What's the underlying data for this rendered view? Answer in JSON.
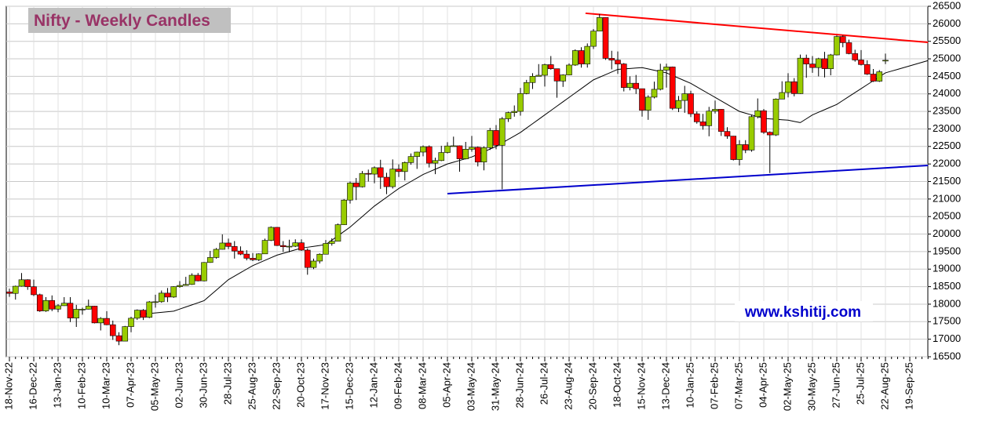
{
  "chart_data": {
    "type": "candlestick",
    "title": "Nifty - Weekly Candles",
    "annotation": "www.kshitij.com",
    "categories": [
      "18-Nov-22",
      null,
      null,
      null,
      "16-Dec-22",
      null,
      null,
      null,
      "13-Jan-23",
      null,
      null,
      null,
      "10-Feb-23",
      null,
      null,
      null,
      "10-Mar-23",
      null,
      null,
      null,
      "07-Apr-23",
      null,
      null,
      null,
      "05-May-23",
      null,
      null,
      null,
      "02-Jun-23",
      null,
      null,
      null,
      "30-Jun-23",
      null,
      null,
      null,
      "28-Jul-23",
      null,
      null,
      null,
      "25-Aug-23",
      null,
      null,
      null,
      "22-Sep-23",
      null,
      null,
      null,
      "20-Oct-23",
      null,
      null,
      null,
      "17-Nov-23",
      null,
      null,
      null,
      "15-Dec-23",
      null,
      null,
      null,
      "12-Jan-24",
      null,
      null,
      null,
      "09-Feb-24",
      null,
      null,
      null,
      "08-Mar-24",
      null,
      null,
      null,
      "05-Apr-24",
      null,
      null,
      null,
      "03-May-24",
      null,
      null,
      null,
      "31-May-24",
      null,
      null,
      null,
      "28-Jun-24",
      null,
      null,
      null,
      "26-Jul-24",
      null,
      null,
      null,
      "23-Aug-24",
      null,
      null,
      null,
      "20-Sep-24",
      null,
      null,
      null,
      "18-Oct-24",
      null,
      null,
      null,
      "15-Nov-24",
      null,
      null,
      null,
      "13-Dec-24",
      null,
      null,
      null,
      "10-Jan-25",
      null,
      null,
      null,
      "07-Feb-25",
      null,
      null,
      null,
      "07-Mar-25",
      null,
      null,
      null,
      "04-Apr-25",
      null,
      null,
      null,
      "02-May-25",
      null,
      null,
      null,
      "30-May-25",
      null,
      null,
      null,
      "27-Jun-25",
      null,
      null,
      null,
      "25-Jul-25",
      null,
      null,
      null,
      "22-Aug-25",
      null,
      null,
      null,
      "19-Sep-25",
      null,
      null,
      null
    ],
    "ohlc": {
      "up_color": "#99cc00",
      "down_color": "#ff0000",
      "open": [
        18350,
        18307,
        18512,
        18697,
        18497,
        18269,
        17807,
        18105,
        17859,
        17956,
        18028,
        17604,
        17854,
        17856,
        17944,
        17465,
        17594,
        17413,
        17100,
        16945,
        17360,
        17599,
        17828,
        17624,
        18065,
        18069,
        18315,
        18203,
        18499,
        18534,
        18563,
        18826,
        18665,
        19189,
        19332,
        19565,
        19745,
        19646,
        19517,
        19428,
        19310,
        19266,
        19435,
        19820,
        20192,
        19674,
        19638,
        19653,
        19751,
        19542,
        19047,
        19230,
        19425,
        19732,
        19795,
        20268,
        20970,
        21457,
        21349,
        21731,
        21711,
        21894,
        21622,
        21353,
        21854,
        21783,
        22041,
        22213,
        22339,
        22494,
        22023,
        22097,
        22327,
        22514,
        22519,
        22147,
        22420,
        22476,
        22055,
        22467,
        22957,
        22531,
        23290,
        23466,
        23501,
        24010,
        24324,
        24502,
        24531,
        24834,
        24718,
        24367,
        24541,
        24823,
        25236,
        24852,
        25357,
        25791,
        26179,
        25015,
        24964,
        24854,
        24181,
        24304,
        24148,
        23532,
        23907,
        24131,
        24678,
        24768,
        23588,
        23813,
        24005,
        23432,
        23203,
        23092,
        23508,
        23560,
        22929,
        22796,
        22125,
        22553,
        22397,
        23350,
        23519,
        22904,
        22829,
        23852,
        24039,
        24347,
        24008,
        25020,
        24853,
        24751,
        25003,
        24719,
        25112,
        25637,
        25461,
        25150,
        24968,
        24837,
        24565,
        24363,
        24950,
        null,
        null,
        null,
        null,
        null,
        null,
        null
      ],
      "high": [
        18440,
        18530,
        18888,
        18710,
        18700,
        18300,
        18200,
        18250,
        18000,
        18200,
        18200,
        17980,
        17900,
        18130,
        17950,
        17630,
        17800,
        17530,
        17200,
        17380,
        17640,
        17850,
        17860,
        18090,
        18270,
        18390,
        18460,
        18510,
        18660,
        18780,
        18880,
        18890,
        19200,
        19520,
        19600,
        19990,
        19870,
        19800,
        19650,
        19540,
        19460,
        19450,
        19870,
        20220,
        20200,
        19800,
        19840,
        19850,
        19850,
        19590,
        19300,
        19450,
        19830,
        19880,
        20300,
        21000,
        21500,
        21600,
        21800,
        21840,
        21930,
        22120,
        21750,
        22130,
        21990,
        22070,
        22300,
        22350,
        22530,
        22530,
        22180,
        22520,
        22620,
        22780,
        22530,
        22630,
        22800,
        22500,
        22500,
        23030,
        23110,
        23340,
        23490,
        23670,
        24170,
        24400,
        24590,
        24850,
        24860,
        25080,
        24720,
        24560,
        24870,
        25270,
        25330,
        25440,
        25850,
        26280,
        26180,
        25230,
        25210,
        24880,
        24500,
        24540,
        24150,
        23960,
        24350,
        24860,
        24860,
        24780,
        23940,
        24230,
        24090,
        23500,
        23430,
        23630,
        23810,
        23570,
        23050,
        22800,
        22680,
        22680,
        23400,
        23870,
        23570,
        22930,
        23870,
        24360,
        24590,
        24450,
        25120,
        25120,
        25080,
        25030,
        25200,
        25140,
        25670,
        25670,
        25550,
        25260,
        25250,
        24960,
        24710,
        24680,
        25150,
        null,
        null,
        null,
        null,
        null,
        null,
        null
      ],
      "low": [
        18210,
        18130,
        18500,
        18410,
        18230,
        17780,
        17780,
        17800,
        17770,
        17950,
        17490,
        17350,
        17700,
        17850,
        17450,
        17250,
        17400,
        16980,
        16830,
        16950,
        17200,
        17550,
        17550,
        17600,
        17900,
        18040,
        18060,
        18180,
        18470,
        18530,
        18550,
        18650,
        18650,
        19180,
        19300,
        19560,
        19570,
        19300,
        19400,
        19250,
        19230,
        19230,
        19430,
        19800,
        19660,
        19490,
        19480,
        19630,
        19520,
        18840,
        19000,
        19160,
        19420,
        19670,
        19790,
        20260,
        20870,
        20970,
        21330,
        21500,
        21450,
        21290,
        21140,
        21300,
        21630,
        21530,
        21980,
        21860,
        22220,
        21900,
        21710,
        22080,
        22300,
        22500,
        21780,
        22130,
        22350,
        21930,
        21820,
        22400,
        22420,
        21280,
        23200,
        23350,
        23380,
        23990,
        24140,
        24500,
        24210,
        24690,
        23890,
        24200,
        24530,
        24800,
        24750,
        24750,
        25280,
        25790,
        24970,
        24700,
        24570,
        24070,
        24100,
        24000,
        23350,
        23260,
        23870,
        24100,
        24180,
        23540,
        23480,
        23460,
        23340,
        23150,
        22980,
        22790,
        23440,
        22800,
        22720,
        22100,
        21960,
        22310,
        22350,
        23300,
        22860,
        21740,
        22800,
        23850,
        23900,
        23930,
        24000,
        24460,
        24600,
        24500,
        24470,
        24530,
        25100,
        25330,
        25130,
        24920,
        24810,
        24540,
        24340,
        24340,
        24850,
        null,
        null,
        null,
        null,
        null,
        null,
        null
      ],
      "close": [
        18307,
        18512,
        18697,
        18497,
        18269,
        17807,
        18105,
        17859,
        17956,
        18028,
        17604,
        17854,
        17856,
        17944,
        17465,
        17594,
        17413,
        17100,
        16945,
        17360,
        17599,
        17828,
        17624,
        18065,
        18069,
        18315,
        18203,
        18499,
        18534,
        18563,
        18826,
        18665,
        19189,
        19332,
        19565,
        19745,
        19646,
        19517,
        19428,
        19310,
        19266,
        19435,
        19820,
        20192,
        19674,
        19638,
        19653,
        19751,
        19542,
        19047,
        19230,
        19425,
        19732,
        19795,
        20268,
        20970,
        21457,
        21349,
        21731,
        21711,
        21894,
        21622,
        21353,
        21854,
        21783,
        22041,
        22213,
        22339,
        22494,
        22023,
        22097,
        22327,
        22514,
        22519,
        22147,
        22420,
        22476,
        22055,
        22467,
        22957,
        22531,
        23290,
        23466,
        23501,
        24010,
        24324,
        24502,
        24531,
        24834,
        24718,
        24367,
        24541,
        24823,
        25236,
        24852,
        25357,
        25791,
        26179,
        25015,
        24964,
        24854,
        24181,
        24304,
        24148,
        23532,
        23907,
        24131,
        24678,
        24768,
        23588,
        23813,
        24005,
        23432,
        23203,
        23092,
        23508,
        23560,
        22929,
        22796,
        22125,
        22553,
        22397,
        23350,
        23519,
        22904,
        22829,
        23852,
        24039,
        24347,
        24008,
        25020,
        24853,
        24751,
        25003,
        24719,
        25112,
        25637,
        25461,
        25150,
        24968,
        24837,
        24565,
        24363,
        24631,
        24960,
        null,
        null,
        null,
        null,
        null,
        null,
        null
      ]
    },
    "ma": {
      "color": "#000000",
      "values": [
        null,
        null,
        null,
        null,
        null,
        null,
        null,
        null,
        null,
        null,
        null,
        null,
        null,
        null,
        null,
        null,
        null,
        null,
        null,
        null,
        null,
        17700,
        17717,
        17733,
        17750,
        17767,
        17783,
        17800,
        17860,
        17920,
        17980,
        18040,
        18100,
        18250,
        18400,
        18550,
        18700,
        18800,
        18900,
        19000,
        19100,
        19175,
        19250,
        19325,
        19400,
        19450,
        19500,
        19550,
        19600,
        19625,
        19650,
        19675,
        19700,
        19825,
        19950,
        20075,
        20200,
        20350,
        20500,
        20650,
        20800,
        20925,
        21050,
        21175,
        21300,
        21400,
        21500,
        21600,
        21700,
        21775,
        21850,
        21925,
        22000,
        22050,
        22100,
        22150,
        22200,
        22275,
        22350,
        22425,
        22500,
        22600,
        22700,
        22800,
        22900,
        23025,
        23150,
        23275,
        23400,
        23525,
        23650,
        23775,
        23900,
        24025,
        24150,
        24275,
        24400,
        24475,
        24550,
        24625,
        24700,
        24713,
        24725,
        24738,
        24750,
        24713,
        24675,
        24638,
        24600,
        24525,
        24450,
        24375,
        24300,
        24200,
        24100,
        24000,
        23900,
        23800,
        23700,
        23600,
        23500,
        23450,
        23400,
        23350,
        23300,
        23288,
        23275,
        23263,
        23250,
        23215,
        23180,
        23290,
        23400,
        23475,
        23550,
        23625,
        23700,
        23813,
        23925,
        24038,
        24150,
        24263,
        24375,
        24488,
        24600,
        24650,
        24700,
        24750,
        24800,
        24850,
        24900,
        24950
      ]
    },
    "trendlines": [
      {
        "color": "#ff0000",
        "start": [
          94.7,
          26300
        ],
        "end": [
          151,
          25470
        ]
      },
      {
        "color": "#0000cc",
        "start": [
          72,
          21153
        ],
        "end": [
          151,
          21959
        ]
      }
    ],
    "ylim": [
      16500,
      26500
    ],
    "yticks": [
      16500,
      17000,
      17500,
      18000,
      18500,
      19000,
      19500,
      20000,
      20500,
      21000,
      21500,
      22000,
      22500,
      23000,
      23500,
      24000,
      24500,
      25000,
      25500,
      26000,
      26500
    ],
    "grid": true
  }
}
